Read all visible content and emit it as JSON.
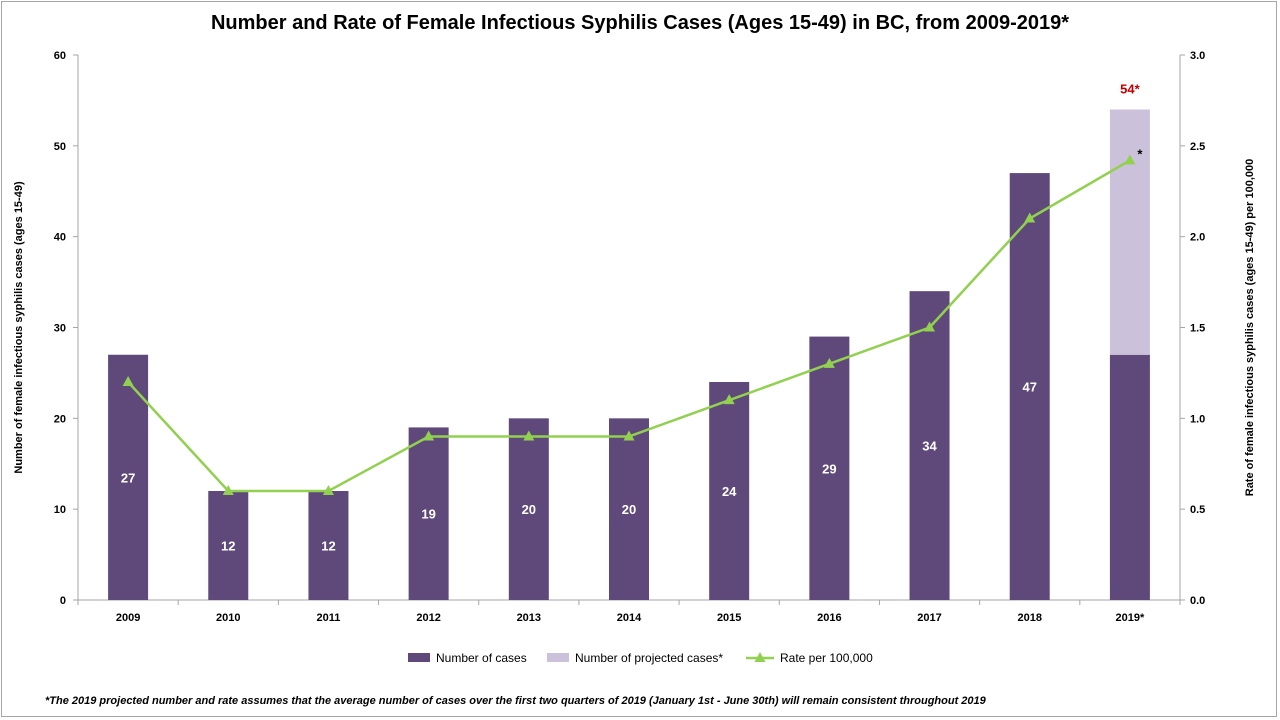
{
  "chart_data": {
    "type": "bar",
    "title": "Number and Rate of Female Infectious Syphilis Cases (Ages 15-49) in BC, from 2009-2019*",
    "ylabel": "Number of female infectious syphilis cases (ages 15-49)",
    "y2label": "Rate of female infectious syphilis cases (ages 15-49) per 100,000",
    "ylim": [
      0,
      60
    ],
    "y2lim": [
      0,
      3.0
    ],
    "yticks": [
      "0",
      "10",
      "20",
      "30",
      "40",
      "50",
      "60"
    ],
    "y2ticks": [
      "0.0",
      "0.5",
      "1.0",
      "1.5",
      "2.0",
      "2.5",
      "3.0"
    ],
    "categories": [
      "2009",
      "2010",
      "2011",
      "2012",
      "2013",
      "2014",
      "2015",
      "2016",
      "2017",
      "2018",
      "2019*"
    ],
    "series": [
      {
        "name": "Number of cases",
        "type": "bar",
        "color": "#5f497a",
        "values": [
          27,
          12,
          12,
          19,
          20,
          20,
          24,
          29,
          34,
          47,
          27
        ],
        "labels": [
          "27",
          "12",
          "12",
          "19",
          "20",
          "20",
          "24",
          "29",
          "34",
          "47",
          ""
        ]
      },
      {
        "name": "Number of projected cases*",
        "type": "bar-stacked",
        "color": "#ccc1da",
        "values": [
          0,
          0,
          0,
          0,
          0,
          0,
          0,
          0,
          0,
          0,
          27
        ],
        "total_label": "54*"
      },
      {
        "name": "Rate per 100,000",
        "type": "line",
        "axis": "right",
        "color": "#92d050",
        "values": [
          1.2,
          0.6,
          0.6,
          0.9,
          0.9,
          0.9,
          1.1,
          1.3,
          1.5,
          2.1,
          2.42
        ],
        "last_point_note": "*"
      }
    ],
    "legend": "bottom",
    "grid": false
  },
  "footnote": "*The 2019 projected number and rate assumes that the average number of cases over the first two quarters of 2019 (January 1st - June 30th) will remain consistent throughout 2019"
}
